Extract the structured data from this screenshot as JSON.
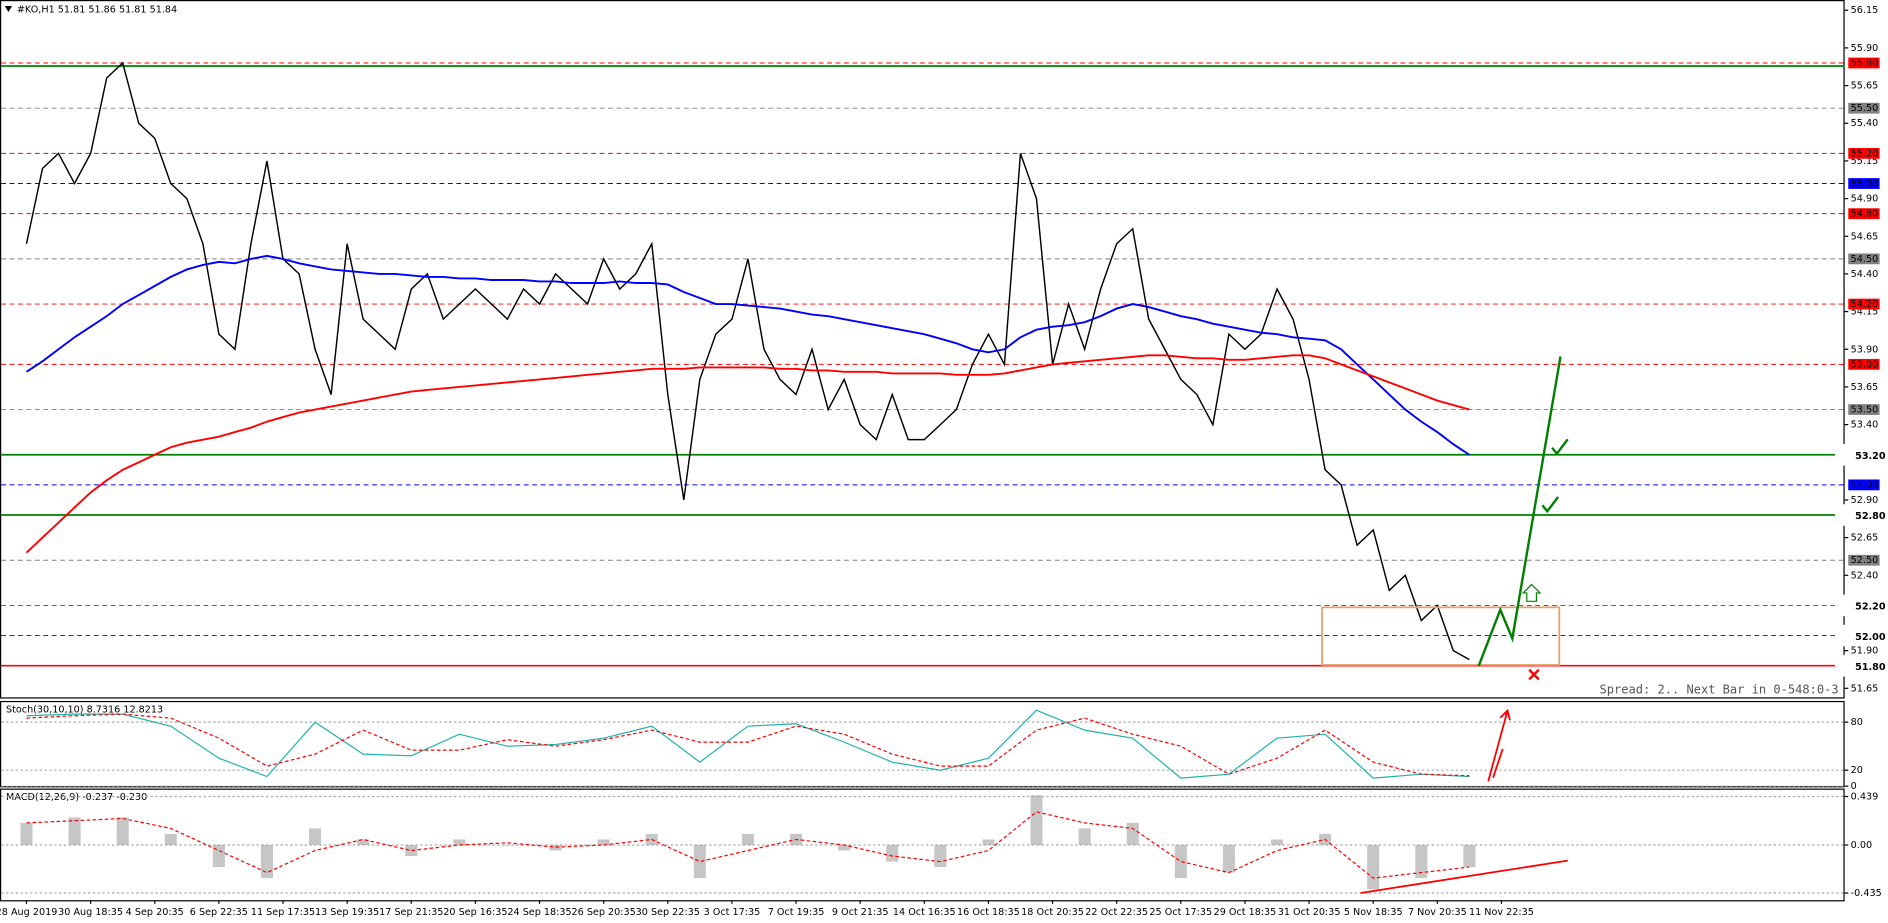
{
  "chart_data": [
    {
      "type": "line",
      "title": "#KO,H1  51.81 51.86 51.81 51.84",
      "categories": [
        "28 Aug 2019",
        null,
        null,
        null,
        "30 Aug 18:35",
        null,
        null,
        null,
        "4 Sep 20:35",
        null,
        null,
        null,
        "6 Sep 22:35",
        null,
        null,
        null,
        "11 Sep 17:35",
        null,
        null,
        null,
        "13 Sep 19:35",
        null,
        null,
        null,
        "17 Sep 21:35",
        null,
        null,
        null,
        "20 Sep 16:35",
        null,
        null,
        null,
        "24 Sep 18:35",
        null,
        null,
        null,
        "26 Sep 20:35",
        null,
        null,
        null,
        "30 Sep 22:35",
        null,
        null,
        null,
        "3 Oct 17:35",
        null,
        null,
        null,
        "7 Oct 19:35",
        null,
        null,
        null,
        "9 Oct 21:35",
        null,
        null,
        null,
        "14 Oct 16:35",
        null,
        null,
        null,
        "16 Oct 18:35",
        null,
        null,
        null,
        "18 Oct 20:35",
        null,
        null,
        null,
        "22 Oct 22:35",
        null,
        null,
        null,
        "25 Oct 17:35",
        null,
        null,
        null,
        "29 Oct 18:35",
        null,
        null,
        null,
        "31 Oct 20:35",
        null,
        null,
        null,
        "5 Nov 18:35",
        null,
        null,
        null,
        "7 Nov 20:35",
        null,
        null,
        null,
        "11 Nov 22:35"
      ],
      "series": [
        {
          "color": "#000000",
          "width": 1.2,
          "values": [
            54.6,
            55.1,
            55.2,
            55.0,
            55.2,
            55.7,
            55.8,
            55.4,
            55.3,
            55.0,
            54.9,
            54.6,
            54.0,
            53.9,
            54.6,
            55.15,
            54.5,
            54.4,
            53.9,
            53.6,
            54.6,
            54.1,
            54.0,
            53.9,
            54.3,
            54.4,
            54.1,
            54.2,
            54.3,
            54.2,
            54.1,
            54.3,
            54.2,
            54.4,
            54.3,
            54.2,
            54.5,
            54.3,
            54.4,
            54.6,
            53.6,
            52.9,
            53.7,
            54.0,
            54.1,
            54.5,
            53.9,
            53.7,
            53.6,
            53.9,
            53.5,
            53.7,
            53.4,
            53.3,
            53.6,
            53.3,
            53.3,
            53.4,
            53.5,
            53.8,
            54.0,
            53.8,
            55.2,
            54.9,
            53.8,
            54.2,
            53.9,
            54.3,
            54.6,
            54.7,
            54.1,
            53.9,
            53.7,
            53.6,
            53.4,
            54.0,
            53.9,
            54.0,
            54.3,
            54.1,
            53.7,
            53.1,
            53.0,
            52.6,
            52.7,
            52.3,
            52.4,
            52.1,
            52.2,
            51.9,
            51.84,
            null,
            null
          ]
        },
        {
          "color": "#0000ff",
          "width": 1.6,
          "values": [
            53.75,
            53.82,
            53.9,
            53.98,
            54.05,
            54.12,
            54.2,
            54.26,
            54.32,
            54.38,
            54.43,
            54.46,
            54.48,
            54.47,
            54.5,
            54.52,
            54.5,
            54.47,
            54.45,
            54.43,
            54.42,
            54.41,
            54.4,
            54.4,
            54.39,
            54.38,
            54.38,
            54.37,
            54.37,
            54.36,
            54.36,
            54.36,
            54.35,
            54.35,
            54.34,
            54.34,
            54.34,
            54.35,
            54.34,
            54.34,
            54.33,
            54.28,
            54.24,
            54.2,
            54.2,
            54.19,
            54.18,
            54.17,
            54.15,
            54.13,
            54.12,
            54.1,
            54.08,
            54.06,
            54.04,
            54.02,
            54.0,
            53.97,
            53.94,
            53.9,
            53.88,
            53.9,
            53.98,
            54.03,
            54.05,
            54.06,
            54.08,
            54.12,
            54.17,
            54.2,
            54.18,
            54.15,
            54.12,
            54.1,
            54.07,
            54.05,
            54.03,
            54.01,
            54.0,
            53.98,
            53.97,
            53.96,
            53.9,
            53.8,
            53.7,
            53.6,
            53.5,
            53.42,
            53.35,
            53.27,
            53.2,
            null,
            null
          ]
        },
        {
          "color": "#ff0000",
          "width": 1.6,
          "values": [
            52.55,
            52.65,
            52.75,
            52.85,
            52.95,
            53.03,
            53.1,
            53.15,
            53.2,
            53.25,
            53.28,
            53.3,
            53.32,
            53.35,
            53.38,
            53.42,
            53.45,
            53.48,
            53.5,
            53.52,
            53.54,
            53.56,
            53.58,
            53.6,
            53.62,
            53.63,
            53.64,
            53.65,
            53.66,
            53.67,
            53.68,
            53.69,
            53.7,
            53.71,
            53.72,
            53.73,
            53.74,
            53.75,
            53.76,
            53.77,
            53.77,
            53.77,
            53.78,
            53.78,
            53.78,
            53.78,
            53.78,
            53.77,
            53.77,
            53.76,
            53.76,
            53.75,
            53.75,
            53.75,
            53.74,
            53.74,
            53.74,
            53.74,
            53.73,
            53.73,
            53.73,
            53.74,
            53.76,
            53.78,
            53.8,
            53.81,
            53.82,
            53.83,
            53.84,
            53.85,
            53.86,
            53.86,
            53.85,
            53.84,
            53.84,
            53.83,
            53.83,
            53.84,
            53.85,
            53.86,
            53.86,
            53.84,
            53.8,
            53.76,
            53.72,
            53.68,
            53.64,
            53.6,
            53.56,
            53.53,
            53.5,
            null,
            null
          ]
        }
      ],
      "ylim": [
        51.59,
        56.21
      ],
      "yticks": [
        56.15,
        {
          "value": 55.9,
          "label": "55.90"
        },
        55.65,
        {
          "value": 55.4,
          "label": "55.40"
        },
        55.15,
        {
          "value": 54.9,
          "label": "54.90"
        },
        54.65,
        {
          "value": 54.4,
          "label": "54.40"
        },
        54.15,
        {
          "value": 53.9,
          "label": "53.90"
        },
        53.65,
        {
          "value": 53.4,
          "label": "53.40"
        },
        53.15,
        {
          "value": 52.9,
          "label": "52.90"
        },
        52.65,
        {
          "value": 52.4,
          "label": "52.40"
        },
        52.15,
        {
          "value": 51.9,
          "label": "51.90"
        },
        51.65
      ],
      "levels": [
        {
          "value": 55.8,
          "label": "55.80",
          "color": "#ff0000",
          "style": "dashed",
          "label_style": "tag"
        },
        {
          "value": 55.78,
          "color": "#008000",
          "style": "solid"
        },
        {
          "value": 55.5,
          "label": "55.50",
          "color": "#808080",
          "style": "dashed",
          "label_style": "tag"
        },
        {
          "value": 55.2,
          "label": "55.20",
          "color": "#ff0000",
          "style": "dashed",
          "label_style": "tag"
        },
        {
          "value": 55.0,
          "label": "55.00",
          "color": "#0000ff",
          "style": "dashed",
          "label_style": "tag"
        },
        {
          "value": 54.8,
          "label": "54.80",
          "color": "#ff0000",
          "style": "dashed",
          "label_style": "tag"
        },
        {
          "value": 54.5,
          "label": "54.50",
          "color": "#808080",
          "style": "dashed",
          "label_style": "tag"
        },
        {
          "value": 54.2,
          "label": "54.20",
          "color": "#ff0000",
          "style": "dashed",
          "label_style": "tag"
        },
        {
          "value": 53.8,
          "label": "53.80",
          "color": "#ff0000",
          "style": "dashed",
          "label_style": "tag"
        },
        {
          "value": 53.5,
          "label": "53.50",
          "color": "#808080",
          "style": "dashed",
          "label_style": "tag"
        },
        {
          "value": 53.2,
          "label": "53.20",
          "color": "#008000",
          "style": "solid",
          "label_style": "big"
        },
        {
          "value": 53.0,
          "label": "53.00",
          "color": "#0000ff",
          "style": "dashed",
          "label_style": "tag"
        },
        {
          "value": 52.8,
          "label": "52.80",
          "color": "#008000",
          "style": "solid",
          "label_style": "big"
        },
        {
          "value": 52.5,
          "label": "52.50",
          "color": "#808080",
          "style": "dashed",
          "label_style": "tag"
        },
        {
          "value": 52.2,
          "label": "52.20",
          "color": "#ff0000",
          "style": "dashed",
          "label_style": "big"
        },
        {
          "value": 52.0,
          "label": "52.00",
          "color": "#0000ff",
          "style": "dashed",
          "label_style": "big"
        },
        {
          "value": 51.8,
          "label": "51.80",
          "color": "#ff0000",
          "style": "solid",
          "label_style": "big"
        }
      ],
      "annotation": "Spread: 2.. Next Bar in 0-548:0-3"
    },
    {
      "type": "line",
      "title": "Stoch(30,10,10) 8.7316 12.8213",
      "series": [
        {
          "color": "#20b2aa",
          "style": "solid",
          "values": [
            88,
            90,
            90,
            75,
            35,
            12,
            80,
            40,
            38,
            65,
            50,
            52,
            60,
            75,
            30,
            75,
            78,
            55,
            30,
            20,
            35,
            95,
            70,
            60,
            10,
            15,
            60,
            65,
            10,
            15,
            12
          ]
        },
        {
          "color": "#ff0000",
          "style": "dashed",
          "values": [
            85,
            88,
            90,
            85,
            60,
            25,
            40,
            70,
            45,
            45,
            58,
            50,
            58,
            70,
            55,
            55,
            75,
            65,
            40,
            25,
            25,
            70,
            85,
            65,
            50,
            15,
            35,
            70,
            30,
            15,
            13
          ]
        }
      ],
      "ylim": [
        0,
        105
      ],
      "yticks": [
        0,
        20,
        80
      ]
    },
    {
      "type": "bar",
      "title": "MACD(12,26,9) -0.237 -0.230",
      "series": [
        {
          "color": "#a0a0a0",
          "kind": "bar",
          "values": [
            0.2,
            0.25,
            0.25,
            0.1,
            -0.2,
            -0.3,
            0.15,
            0.05,
            -0.1,
            0.05,
            0.0,
            -0.05,
            0.05,
            0.1,
            -0.3,
            0.1,
            0.1,
            -0.05,
            -0.15,
            -0.2,
            0.05,
            0.45,
            0.15,
            0.2,
            -0.3,
            -0.25,
            0.05,
            0.1,
            -0.4,
            -0.3,
            -0.2
          ]
        },
        {
          "color": "#ff0000",
          "kind": "line",
          "style": "dashed",
          "values": [
            0.2,
            0.22,
            0.24,
            0.15,
            -0.05,
            -0.25,
            -0.05,
            0.05,
            -0.05,
            0.0,
            0.02,
            -0.02,
            0.0,
            0.05,
            -0.15,
            -0.05,
            0.05,
            0.0,
            -0.1,
            -0.15,
            -0.05,
            0.3,
            0.2,
            0.15,
            -0.15,
            -0.25,
            -0.05,
            0.05,
            -0.3,
            -0.25,
            -0.2
          ]
        }
      ],
      "ylim": [
        -0.5,
        0.5
      ],
      "yticks": [
        0.439,
        {
          "value": 0,
          "label": "0.00"
        },
        -0.435
      ]
    }
  ]
}
